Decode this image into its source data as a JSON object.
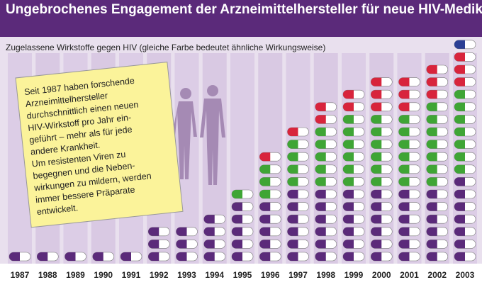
{
  "chart_data": {
    "type": "pictogram",
    "title": "Ungebrochenes Engagement der Arzneimittelhersteller für neue HIV-Medikamente",
    "subtitle": "Zugelassene Wirkstoffe gegen HIV (gleiche Farbe bedeutet ähnliche Wirkungsweise)",
    "note": [
      "Seit 1987 haben forschende",
      "Arzneimittelhersteller",
      "durchschnittlich einen neuen",
      "HIV-Wirkstoff pro Jahr ein-",
      "geführt – mehr als für jede",
      "andere Krankheit.",
      "Um resistenten Viren zu",
      "begegnen und die Neben-",
      "wirkungen zu mildern, werden",
      "immer bessere Präparate",
      "entwickelt."
    ],
    "categories": [
      "1987",
      "1988",
      "1989",
      "1990",
      "1991",
      "1992",
      "1993",
      "1994",
      "1995",
      "1996",
      "1997",
      "1998",
      "1999",
      "2000",
      "2001",
      "2002",
      "2003"
    ],
    "series": [
      {
        "color": "#5b2a7a",
        "values": [
          1,
          1,
          1,
          1,
          1,
          3,
          3,
          4,
          5,
          5,
          6,
          6,
          6,
          6,
          6,
          6,
          7
        ]
      },
      {
        "color": "#3fa535",
        "values": [
          0,
          0,
          0,
          0,
          0,
          0,
          0,
          0,
          1,
          3,
          4,
          5,
          6,
          6,
          6,
          7,
          7
        ]
      },
      {
        "color": "#d8243c",
        "values": [
          0,
          0,
          0,
          0,
          0,
          0,
          0,
          0,
          0,
          1,
          1,
          2,
          2,
          3,
          3,
          3,
          3
        ]
      },
      {
        "color": "#2b3f94",
        "values": [
          0,
          0,
          0,
          0,
          0,
          0,
          0,
          0,
          0,
          0,
          0,
          0,
          0,
          0,
          0,
          0,
          1
        ]
      }
    ]
  }
}
